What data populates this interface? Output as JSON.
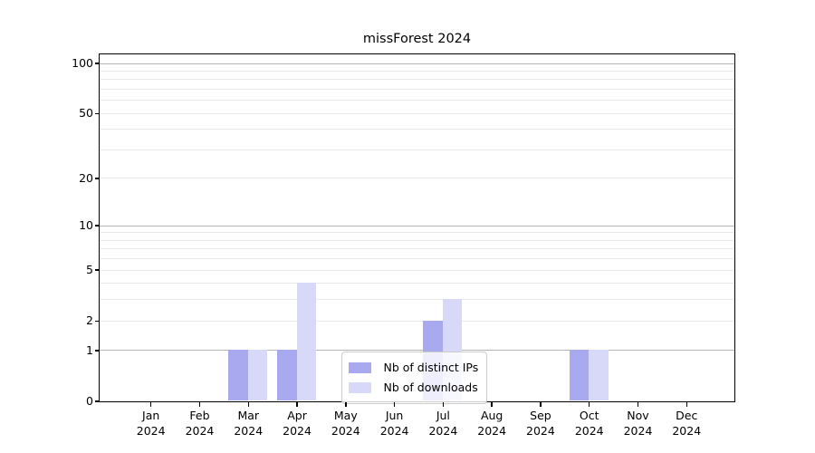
{
  "chart_data": {
    "type": "bar",
    "title": "missForest 2024",
    "xlabel": "",
    "ylabel": "",
    "year_label": "2024",
    "categories": [
      "Jan",
      "Feb",
      "Mar",
      "Apr",
      "May",
      "Jun",
      "Jul",
      "Aug",
      "Sep",
      "Oct",
      "Nov",
      "Dec"
    ],
    "series": [
      {
        "name": "Nb of distinct IPs",
        "color": "#a9a9f0",
        "values": [
          0,
          0,
          1,
          1,
          0,
          0,
          2,
          0,
          0,
          1,
          0,
          0
        ]
      },
      {
        "name": "Nb of downloads",
        "color": "#d8d8f8",
        "values": [
          0,
          0,
          1,
          4,
          0,
          0,
          3,
          0,
          0,
          1,
          0,
          0
        ]
      }
    ],
    "y_scale": "log(1+v)",
    "y_ticks": [
      0,
      1,
      2,
      5,
      10,
      20,
      50,
      100
    ],
    "y_tick_labels": [
      "0",
      "1",
      "2",
      "5",
      "10",
      "20",
      "50",
      "100"
    ],
    "major_gridlines": [
      1,
      10,
      100
    ],
    "minor_gridlines": [
      2,
      3,
      4,
      5,
      6,
      7,
      8,
      9,
      20,
      30,
      40,
      50,
      60,
      70,
      80,
      90
    ],
    "ylim": [
      0,
      113
    ],
    "grid": true,
    "legend_position": "lower center"
  },
  "colors": {
    "bar_distinct_ips": "#a9a9f0",
    "bar_downloads": "#d8d8f8",
    "grid_major": "#b4b4b4",
    "grid_minor": "#e9e9e9",
    "axis": "#000000",
    "legend_border": "#cccccc"
  }
}
